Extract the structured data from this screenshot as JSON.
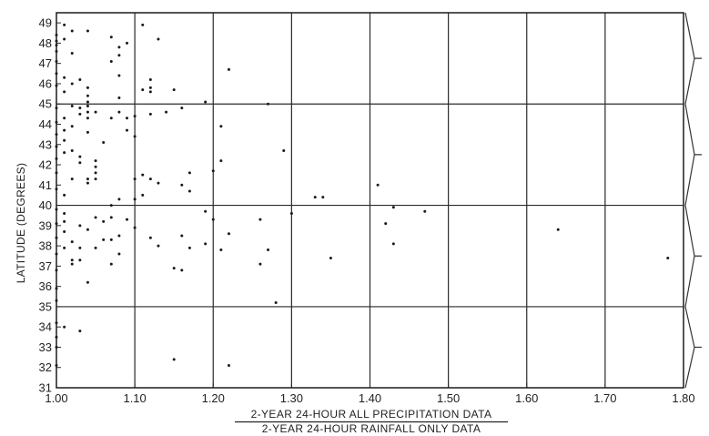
{
  "chart_data": {
    "type": "scatter",
    "title": "",
    "ylabel": "LATITUDE (DEGREES)",
    "xlabel_numerator": "2-YEAR 24-HOUR ALL PRECIPITATION DATA",
    "xlabel_denominator": "2-YEAR 24-HOUR RAINFALL ONLY DATA",
    "xlim": [
      1.0,
      1.8
    ],
    "ylim": [
      31,
      49.5
    ],
    "x_ticks": [
      1.0,
      1.1,
      1.2,
      1.3,
      1.4,
      1.5,
      1.6,
      1.7,
      1.8
    ],
    "x_tick_labels": [
      "1.00",
      "1.10",
      "1.20",
      "1.30",
      "1.40",
      "1.50",
      "1.60",
      "1.70",
      "1.80"
    ],
    "y_ticks": [
      31,
      32,
      33,
      34,
      35,
      36,
      37,
      38,
      39,
      40,
      41,
      42,
      43,
      44,
      45,
      46,
      47,
      48,
      49
    ],
    "y_tick_labels": [
      "31",
      "32",
      "33",
      "34",
      "35",
      "36",
      "37",
      "38",
      "39",
      "40",
      "41",
      "42",
      "43",
      "44",
      "45",
      "46",
      "47",
      "48",
      "49"
    ],
    "x_gridlines": [
      1.1,
      1.2,
      1.3,
      1.4,
      1.5,
      1.6,
      1.7
    ],
    "y_gridlines": [
      35,
      40,
      45
    ],
    "grid": "coarse",
    "legend": "none",
    "brace_groups": [
      [
        45,
        49.5
      ],
      [
        40,
        45
      ],
      [
        35,
        40
      ],
      [
        31,
        35
      ]
    ],
    "points": [
      {
        "x": 1.0,
        "y": 48.4
      },
      {
        "x": 1.0,
        "y": 48.1
      },
      {
        "x": 1.0,
        "y": 47.9
      },
      {
        "x": 1.0,
        "y": 47.6
      },
      {
        "x": 1.0,
        "y": 47.1
      },
      {
        "x": 1.0,
        "y": 46.5
      },
      {
        "x": 1.0,
        "y": 45.9
      },
      {
        "x": 1.0,
        "y": 44.8
      },
      {
        "x": 1.0,
        "y": 44.1
      },
      {
        "x": 1.0,
        "y": 43.5
      },
      {
        "x": 1.0,
        "y": 42.9
      },
      {
        "x": 1.0,
        "y": 42.3
      },
      {
        "x": 1.0,
        "y": 41.6
      },
      {
        "x": 1.0,
        "y": 40.8
      },
      {
        "x": 1.0,
        "y": 39.8
      },
      {
        "x": 1.0,
        "y": 39.1
      },
      {
        "x": 1.0,
        "y": 38.4
      },
      {
        "x": 1.0,
        "y": 37.6
      },
      {
        "x": 1.0,
        "y": 36.8
      },
      {
        "x": 1.0,
        "y": 35.9
      },
      {
        "x": 1.0,
        "y": 35.3
      },
      {
        "x": 1.0,
        "y": 34.2
      },
      {
        "x": 1.0,
        "y": 33.5
      },
      {
        "x": 1.0,
        "y": 33.0
      },
      {
        "x": 1.0,
        "y": 32.1
      },
      {
        "x": 1.01,
        "y": 48.9
      },
      {
        "x": 1.01,
        "y": 48.2
      },
      {
        "x": 1.01,
        "y": 46.3
      },
      {
        "x": 1.01,
        "y": 45.6
      },
      {
        "x": 1.01,
        "y": 44.3
      },
      {
        "x": 1.01,
        "y": 43.7
      },
      {
        "x": 1.01,
        "y": 43.2
      },
      {
        "x": 1.01,
        "y": 42.6
      },
      {
        "x": 1.01,
        "y": 40.5
      },
      {
        "x": 1.01,
        "y": 39.6
      },
      {
        "x": 1.01,
        "y": 39.2
      },
      {
        "x": 1.01,
        "y": 38.7
      },
      {
        "x": 1.01,
        "y": 37.9
      },
      {
        "x": 1.01,
        "y": 34.0
      },
      {
        "x": 1.02,
        "y": 48.6
      },
      {
        "x": 1.02,
        "y": 47.5
      },
      {
        "x": 1.02,
        "y": 46.0
      },
      {
        "x": 1.02,
        "y": 44.9
      },
      {
        "x": 1.02,
        "y": 43.9
      },
      {
        "x": 1.02,
        "y": 42.7
      },
      {
        "x": 1.02,
        "y": 41.3
      },
      {
        "x": 1.02,
        "y": 38.2
      },
      {
        "x": 1.02,
        "y": 37.3
      },
      {
        "x": 1.02,
        "y": 37.1
      },
      {
        "x": 1.03,
        "y": 46.2
      },
      {
        "x": 1.03,
        "y": 44.8
      },
      {
        "x": 1.03,
        "y": 44.5
      },
      {
        "x": 1.03,
        "y": 42.4
      },
      {
        "x": 1.03,
        "y": 42.1
      },
      {
        "x": 1.03,
        "y": 39.0
      },
      {
        "x": 1.03,
        "y": 37.9
      },
      {
        "x": 1.03,
        "y": 37.3
      },
      {
        "x": 1.03,
        "y": 33.8
      },
      {
        "x": 1.04,
        "y": 48.6
      },
      {
        "x": 1.04,
        "y": 45.8
      },
      {
        "x": 1.04,
        "y": 45.4
      },
      {
        "x": 1.04,
        "y": 45.1
      },
      {
        "x": 1.04,
        "y": 44.9
      },
      {
        "x": 1.04,
        "y": 44.6
      },
      {
        "x": 1.04,
        "y": 44.3
      },
      {
        "x": 1.04,
        "y": 43.6
      },
      {
        "x": 1.04,
        "y": 41.3
      },
      {
        "x": 1.04,
        "y": 41.1
      },
      {
        "x": 1.04,
        "y": 38.8
      },
      {
        "x": 1.04,
        "y": 36.2
      },
      {
        "x": 1.05,
        "y": 44.6
      },
      {
        "x": 1.05,
        "y": 42.2
      },
      {
        "x": 1.05,
        "y": 41.9
      },
      {
        "x": 1.05,
        "y": 41.6
      },
      {
        "x": 1.05,
        "y": 41.3
      },
      {
        "x": 1.05,
        "y": 39.4
      },
      {
        "x": 1.05,
        "y": 37.9
      },
      {
        "x": 1.06,
        "y": 43.1
      },
      {
        "x": 1.06,
        "y": 39.2
      },
      {
        "x": 1.06,
        "y": 38.3
      },
      {
        "x": 1.07,
        "y": 48.3
      },
      {
        "x": 1.07,
        "y": 47.1
      },
      {
        "x": 1.07,
        "y": 44.3
      },
      {
        "x": 1.07,
        "y": 40.0
      },
      {
        "x": 1.07,
        "y": 39.4
      },
      {
        "x": 1.07,
        "y": 38.3
      },
      {
        "x": 1.07,
        "y": 37.1
      },
      {
        "x": 1.08,
        "y": 47.8
      },
      {
        "x": 1.08,
        "y": 47.4
      },
      {
        "x": 1.08,
        "y": 46.4
      },
      {
        "x": 1.08,
        "y": 45.3
      },
      {
        "x": 1.08,
        "y": 44.6
      },
      {
        "x": 1.08,
        "y": 40.3
      },
      {
        "x": 1.08,
        "y": 38.5
      },
      {
        "x": 1.08,
        "y": 37.6
      },
      {
        "x": 1.09,
        "y": 48.0
      },
      {
        "x": 1.09,
        "y": 44.3
      },
      {
        "x": 1.09,
        "y": 43.7
      },
      {
        "x": 1.09,
        "y": 39.3
      },
      {
        "x": 1.1,
        "y": 44.4
      },
      {
        "x": 1.1,
        "y": 43.4
      },
      {
        "x": 1.1,
        "y": 41.3
      },
      {
        "x": 1.1,
        "y": 40.3
      },
      {
        "x": 1.1,
        "y": 38.9
      },
      {
        "x": 1.11,
        "y": 48.9
      },
      {
        "x": 1.11,
        "y": 45.7
      },
      {
        "x": 1.11,
        "y": 41.5
      },
      {
        "x": 1.11,
        "y": 40.5
      },
      {
        "x": 1.12,
        "y": 46.2
      },
      {
        "x": 1.12,
        "y": 45.8
      },
      {
        "x": 1.12,
        "y": 45.6
      },
      {
        "x": 1.12,
        "y": 44.5
      },
      {
        "x": 1.12,
        "y": 41.3
      },
      {
        "x": 1.12,
        "y": 38.4
      },
      {
        "x": 1.13,
        "y": 48.2
      },
      {
        "x": 1.13,
        "y": 41.1
      },
      {
        "x": 1.13,
        "y": 38.0
      },
      {
        "x": 1.14,
        "y": 44.6
      },
      {
        "x": 1.15,
        "y": 45.7
      },
      {
        "x": 1.15,
        "y": 36.9
      },
      {
        "x": 1.15,
        "y": 32.4
      },
      {
        "x": 1.16,
        "y": 44.8
      },
      {
        "x": 1.16,
        "y": 41.0
      },
      {
        "x": 1.16,
        "y": 38.5
      },
      {
        "x": 1.16,
        "y": 36.8
      },
      {
        "x": 1.17,
        "y": 41.6
      },
      {
        "x": 1.17,
        "y": 40.7
      },
      {
        "x": 1.17,
        "y": 37.9
      },
      {
        "x": 1.19,
        "y": 45.1
      },
      {
        "x": 1.19,
        "y": 39.7
      },
      {
        "x": 1.19,
        "y": 38.1
      },
      {
        "x": 1.2,
        "y": 41.7
      },
      {
        "x": 1.2,
        "y": 39.3
      },
      {
        "x": 1.21,
        "y": 43.9
      },
      {
        "x": 1.21,
        "y": 42.2
      },
      {
        "x": 1.21,
        "y": 37.8
      },
      {
        "x": 1.22,
        "y": 46.7
      },
      {
        "x": 1.22,
        "y": 38.6
      },
      {
        "x": 1.22,
        "y": 32.1
      },
      {
        "x": 1.26,
        "y": 39.3
      },
      {
        "x": 1.26,
        "y": 37.1
      },
      {
        "x": 1.27,
        "y": 45.0
      },
      {
        "x": 1.27,
        "y": 37.8
      },
      {
        "x": 1.28,
        "y": 35.2
      },
      {
        "x": 1.29,
        "y": 42.7
      },
      {
        "x": 1.3,
        "y": 39.6
      },
      {
        "x": 1.33,
        "y": 40.4
      },
      {
        "x": 1.34,
        "y": 40.4
      },
      {
        "x": 1.35,
        "y": 37.4
      },
      {
        "x": 1.41,
        "y": 41.0
      },
      {
        "x": 1.42,
        "y": 39.1
      },
      {
        "x": 1.43,
        "y": 39.9
      },
      {
        "x": 1.43,
        "y": 38.1
      },
      {
        "x": 1.47,
        "y": 39.7
      },
      {
        "x": 1.64,
        "y": 38.8
      },
      {
        "x": 1.78,
        "y": 37.4
      }
    ]
  }
}
